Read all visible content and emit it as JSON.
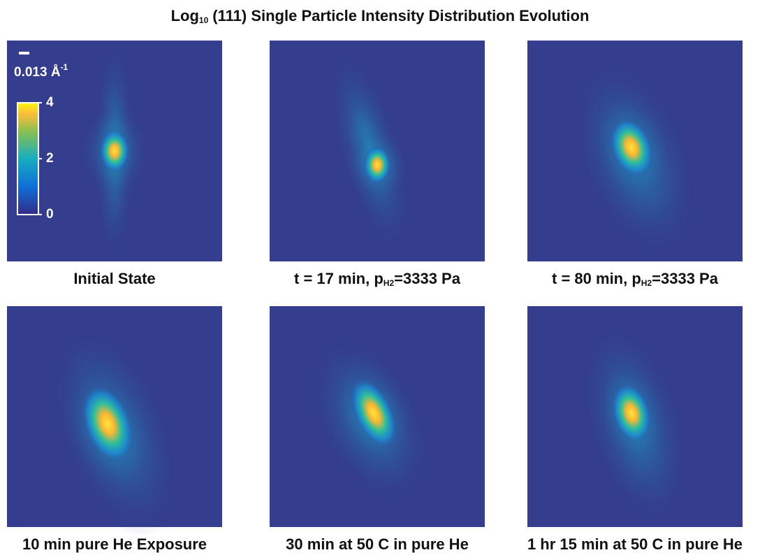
{
  "title": {
    "prefix": "Log",
    "subscript": "10",
    "text": "(111) Single Particle Intensity Distribution Evolution"
  },
  "scale_bar": {
    "label": "0.013 Å",
    "superscript": "-1"
  },
  "colorbar": {
    "lim": [
      0,
      4
    ],
    "ticks": [
      0,
      2,
      4
    ]
  },
  "panels": [
    {
      "caption": {
        "prefix": "Initial State"
      }
    },
    {
      "caption": {
        "prefix": "t = 17 min, p",
        "subscript": "H2",
        "suffix": "=3333 Pa"
      }
    },
    {
      "caption": {
        "prefix": "t = 80 min, p",
        "subscript": "H2",
        "suffix": "=3333 Pa"
      }
    },
    {
      "caption": {
        "prefix": "10 min pure He Exposure"
      }
    },
    {
      "caption": {
        "prefix": "30 min at 50 C in pure He"
      }
    },
    {
      "caption": {
        "prefix": "1 hr 15 min at 50 C in pure He"
      }
    }
  ]
}
